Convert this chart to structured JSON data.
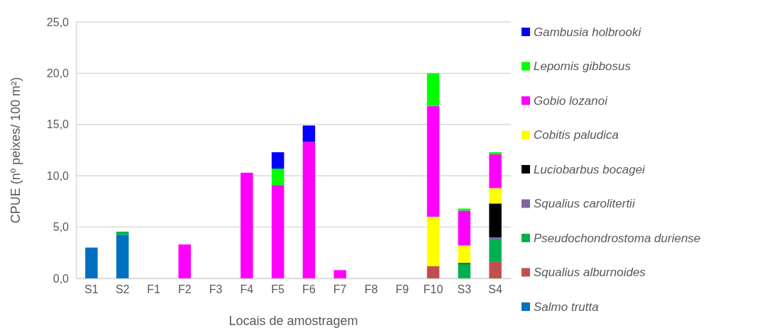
{
  "chart_data": {
    "type": "bar",
    "stacked": true,
    "xlabel": "Locais de amostragem",
    "ylabel": "CPUE (nº peixes/ 100 m²)",
    "categories": [
      "S1",
      "S2",
      "F1",
      "F2",
      "F3",
      "F4",
      "F5",
      "F6",
      "F7",
      "F8",
      "F9",
      "F10",
      "S3",
      "S4"
    ],
    "series": [
      {
        "name": "Salmo trutta",
        "color": "#0070c0",
        "values": [
          3.0,
          4.25,
          null,
          null,
          null,
          null,
          null,
          null,
          null,
          null,
          null,
          null,
          null,
          null
        ]
      },
      {
        "name": "Squalius alburnoides",
        "color": "#c0504d",
        "values": [
          null,
          null,
          null,
          null,
          null,
          null,
          null,
          null,
          null,
          null,
          null,
          1.2,
          null,
          1.6
        ]
      },
      {
        "name": "Pseudochondrostoma duriense",
        "color": "#00b050",
        "values": [
          null,
          0.3,
          null,
          null,
          null,
          null,
          null,
          null,
          null,
          null,
          null,
          null,
          1.4,
          2.2
        ]
      },
      {
        "name": "Squalius carolitertii",
        "color": "#8064a2",
        "values": [
          null,
          null,
          null,
          null,
          null,
          null,
          null,
          null,
          null,
          null,
          null,
          null,
          null,
          0.2
        ]
      },
      {
        "name": "Luciobarbus bocagei",
        "color": "#000000",
        "values": [
          null,
          null,
          null,
          null,
          null,
          null,
          null,
          null,
          null,
          null,
          null,
          null,
          0.1,
          3.3
        ]
      },
      {
        "name": "Cobitis paludica",
        "color": "#ffff00",
        "values": [
          null,
          null,
          null,
          null,
          null,
          null,
          null,
          null,
          null,
          null,
          null,
          4.8,
          1.7,
          1.5
        ]
      },
      {
        "name": "Gobio lozanoi",
        "color": "#ff00ff",
        "values": [
          null,
          null,
          null,
          3.3,
          null,
          10.3,
          9.1,
          13.3,
          0.8,
          null,
          null,
          10.8,
          3.4,
          3.3
        ]
      },
      {
        "name": "Lepomis gibbosus",
        "color": "#00ff00",
        "values": [
          null,
          null,
          null,
          null,
          null,
          null,
          1.6,
          null,
          null,
          null,
          null,
          3.2,
          0.2,
          0.2
        ]
      },
      {
        "name": "Gambusia holbrooki",
        "color": "#0000ff",
        "values": [
          null,
          null,
          null,
          null,
          null,
          null,
          1.6,
          1.6,
          null,
          null,
          null,
          null,
          null,
          null
        ]
      }
    ],
    "ylim": [
      0,
      25
    ],
    "yticks": [
      {
        "value": 0,
        "label": "0,0"
      },
      {
        "value": 5,
        "label": "5,0"
      },
      {
        "value": 10,
        "label": "10,0"
      },
      {
        "value": 15,
        "label": "15,0"
      },
      {
        "value": 20,
        "label": "20,0"
      },
      {
        "value": 25,
        "label": "25,0"
      }
    ],
    "grid": "y",
    "legend": "right"
  }
}
